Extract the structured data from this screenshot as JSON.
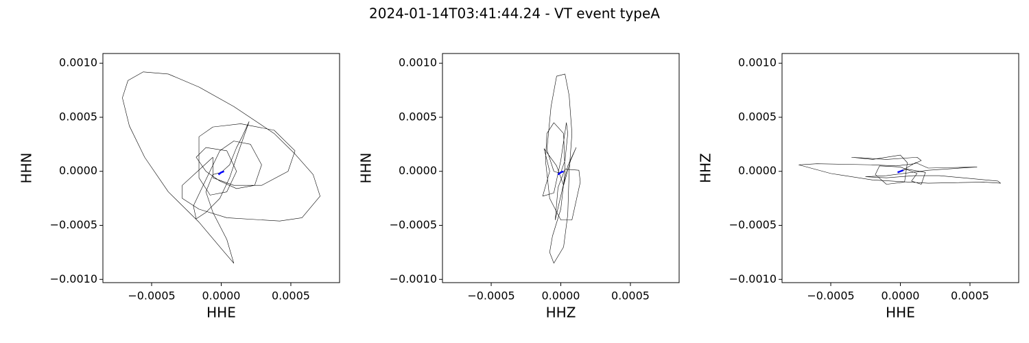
{
  "title": "2024-01-14T03:41:44.24 - VT event typeA",
  "chart_data": [
    {
      "type": "line",
      "x_label": "HHE",
      "y_label": "HHN",
      "xlim": [
        -0.00085,
        0.00085
      ],
      "ylim": [
        -0.00103,
        0.00109
      ],
      "xticks": [
        {
          "value": -0.0005,
          "label": "−0.0005"
        },
        {
          "value": 0,
          "label": "0.0000"
        },
        0.0005
      ],
      "yticks": [
        {
          "value": -0.001,
          "label": "−0.0010"
        },
        {
          "value": -0.0005,
          "label": "−0.0005"
        },
        {
          "value": 0,
          "label": "0.0000"
        },
        0.0005,
        {
          "value": 0.001,
          "label": "0.0010"
        }
      ],
      "series": [
        {
          "color": "#000000",
          "x": [
            0,
            6e-05,
            0.00011,
            0.00015,
            0.0002,
            0.00011,
            6e-05,
            -1e-05,
            -0.00011,
            -0.00018,
            -0.0002,
            -0.00013,
            -1e-05,
            9e-05,
            0.00021,
            0.00029,
            0.00024,
            0.00011,
            -1e-05,
            -0.00011,
            -0.00018,
            -0.00011,
            4e-05,
            0.00011,
            4e-05,
            -8e-05,
            -0.00016,
            -0.00016,
            -6e-05,
            0.00014,
            0.00038,
            0.00053,
            0.00048,
            0.00029,
            9e-05,
            -6e-05,
            -6e-05,
            -0.00028,
            -0.00028,
            -0.00016,
            4e-05,
            0.00042,
            0.00058,
            0.00071,
            0.00066,
            0.00053,
            0.00038,
            9e-05,
            -0.00016,
            -0.00038,
            -0.00056,
            -0.00067,
            -0.00071,
            -0.00066,
            -0.00055,
            -0.00038,
            -0.00016,
            1e-05,
            9e-05,
            4e-05,
            -6e-05,
            -0.00011,
            -6e-05,
            0
          ],
          "values": [
            -1e-05,
            6e-05,
            0.00022,
            0.00032,
            0.00046,
            0.00013,
            -6e-05,
            -0.00025,
            -0.00038,
            -0.00044,
            -0.00032,
            -0.00013,
            0.00019,
            0.00028,
            0.00025,
            6e-05,
            -0.00013,
            -0.00016,
            -9e-05,
            0,
            0.00013,
            0.00022,
            0.00019,
            0,
            -0.00019,
            -0.00022,
            -6e-05,
            0.00032,
            0.00041,
            0.00044,
            0.00038,
            0.00019,
            0,
            -0.00013,
            -0.00013,
            -6e-05,
            0.00013,
            -0.00013,
            -0.00025,
            -0.00035,
            -0.00043,
            -0.00046,
            -0.00043,
            -0.00023,
            -3e-05,
            0.00016,
            0.00035,
            0.0006,
            0.00078,
            0.0009,
            0.00092,
            0.00084,
            0.00068,
            0.00042,
            0.00013,
            -0.00019,
            -0.00047,
            -0.00073,
            -0.00085,
            -0.00063,
            -0.00038,
            -0.00019,
            -3e-05,
            -1e-05
          ]
        },
        {
          "color": "#0000ff",
          "x": [
            -2e-05,
            0,
            2e-05
          ],
          "values": [
            -3e-05,
            -1e-05,
            0
          ]
        }
      ]
    },
    {
      "type": "line",
      "x_label": "HHZ",
      "y_label": "HHN",
      "xlim": [
        -0.00085,
        0.00085
      ],
      "ylim": [
        -0.00103,
        0.00109
      ],
      "xticks": [
        {
          "value": -0.0005,
          "label": "−0.0005"
        },
        {
          "value": 0,
          "label": "0.0000"
        },
        0.0005
      ],
      "yticks": [
        {
          "value": -0.001,
          "label": "−0.0010"
        },
        {
          "value": -0.0005,
          "label": "−0.0005"
        },
        {
          "value": 0,
          "label": "0.0000"
        },
        0.0005,
        {
          "value": 0.001,
          "label": "0.0010"
        }
      ],
      "series": [
        {
          "color": "#000000",
          "x": [
            0,
            3e-05,
            5e-05,
            4e-05,
            0,
            -5e-05,
            -0.00013,
            -8e-05,
            -0.00012,
            -3e-05,
            2e-05,
            7e-05,
            0.00011,
            5e-05,
            -4e-05,
            -2e-05,
            3e-05,
            0.00013,
            0.00014,
            8e-05,
            0,
            -8e-05,
            -0.00011,
            -0.0001,
            -5e-05,
            2e-05,
            3e-05,
            0,
            -6e-05,
            -8e-05,
            -5e-05,
            2e-05,
            5e-05,
            6e-05,
            8e-05,
            6e-05,
            3e-05,
            -3e-05,
            -7e-05,
            -0.0001,
            -5e-05,
            0
          ],
          "values": [
            -1e-05,
            0.0001,
            0.00035,
            0.00045,
            0.0001,
            -0.0002,
            -0.00023,
            0,
            0.00021,
            5e-05,
            -0.00013,
            0.0001,
            0.00022,
            5e-05,
            -0.00045,
            -0.00015,
            2e-05,
            1e-05,
            -0.0001,
            -0.00045,
            -0.00045,
            -0.00025,
            0.0001,
            0.00035,
            0.00045,
            0.00035,
            0,
            -0.00035,
            -0.0006,
            -0.00075,
            -0.00085,
            -0.0007,
            -0.0004,
            0,
            0.00035,
            0.0007,
            0.0009,
            0.00088,
            0.0006,
            0.0002,
            0,
            -2e-05
          ]
        },
        {
          "color": "#0000ff",
          "x": [
            -2e-05,
            0,
            2e-05
          ],
          "values": [
            -3e-05,
            -1e-05,
            0
          ]
        }
      ]
    },
    {
      "type": "line",
      "x_label": "HHE",
      "y_label": "HHZ",
      "xlim": [
        -0.00085,
        0.00085
      ],
      "ylim": [
        -0.00103,
        0.00109
      ],
      "xticks": [
        {
          "value": -0.0005,
          "label": "−0.0005"
        },
        {
          "value": 0,
          "label": "0.0000"
        },
        0.0005
      ],
      "yticks": [
        {
          "value": -0.001,
          "label": "−0.0010"
        },
        {
          "value": -0.0005,
          "label": "−0.0005"
        },
        {
          "value": 0,
          "label": "0.0000"
        },
        0.0005,
        {
          "value": 0.001,
          "label": "0.0010"
        }
      ],
      "series": [
        {
          "color": "#000000",
          "x": [
            0,
            0.00011,
            0.0002,
            0.00055,
            0.0002,
            -0.0001,
            -0.00025,
            -0.0001,
            0.0001,
            0.00028,
            0.0007,
            0.00072,
            0.0006,
            0.0002,
            -0.0002,
            -0.0005,
            -0.00073,
            -0.0006,
            -0.0002,
            -3e-05,
            0.0001,
            0.00015,
            0.00012,
            -0.0001,
            -0.00035,
            -0.0002,
            0,
            5e-05,
            3e-05,
            -0.0001,
            -0.00018,
            -0.00015,
            0,
            0.00012,
            8e-05,
            0.00015,
            0.00018,
            5e-05,
            0
          ],
          "values": [
            0,
            8e-05,
            3e-05,
            4e-05,
            1e-05,
            -4e-05,
            -5e-05,
            -6e-05,
            -4e-05,
            -4e-05,
            -9e-05,
            -0.00011,
            -0.0001,
            -0.00011,
            -8e-05,
            -2e-05,
            6e-05,
            7e-05,
            6e-05,
            5e-05,
            7e-05,
            0.0001,
            0.00013,
            0.00011,
            0.00013,
            0.00011,
            0.00015,
            8e-05,
            -0.0001,
            -0.00012,
            -3e-05,
            5e-05,
            4e-05,
            -2e-05,
            -9e-05,
            -0.00012,
            -1e-05,
            2e-05,
            0
          ]
        },
        {
          "color": "#0000ff",
          "x": [
            -2e-05,
            0,
            2e-05
          ],
          "values": [
            -1e-05,
            0,
            1e-05
          ]
        }
      ]
    }
  ]
}
